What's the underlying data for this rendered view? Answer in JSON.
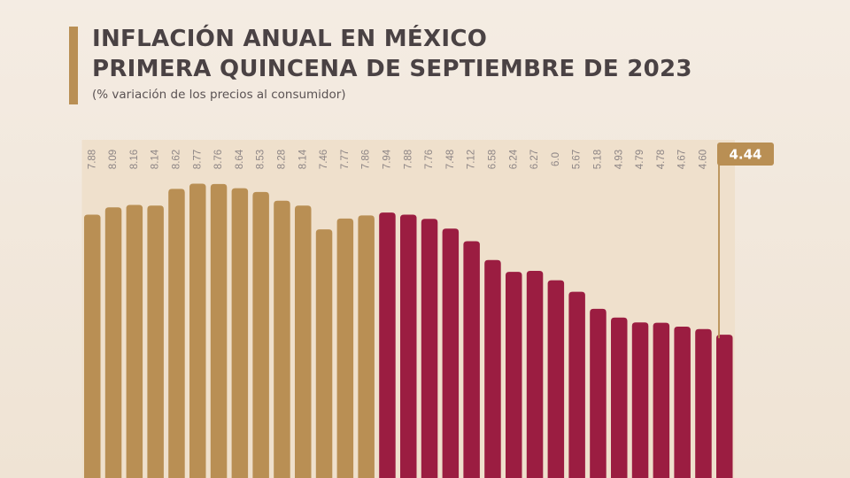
{
  "header": {
    "title_line1": "INFLACIÓN ANUAL EN MÉXICO",
    "title_line2": "PRIMERA QUINCENA DE SEPTIEMBRE DE 2023",
    "subtitle": "(% variación de los precios al consumidor)"
  },
  "colors": {
    "gold": "#b98f54",
    "crimson": "#9b1d41",
    "track": "#efe0cc",
    "label_text": "#8e8686",
    "callout_bg": "#b98f54",
    "callout_text": "#ffffff"
  },
  "chart_data": {
    "type": "bar",
    "values": [
      7.88,
      8.09,
      8.16,
      8.14,
      8.62,
      8.77,
      8.76,
      8.64,
      8.53,
      8.28,
      8.14,
      7.46,
      7.77,
      7.86,
      7.94,
      7.88,
      7.76,
      7.48,
      7.12,
      6.58,
      6.24,
      6.27,
      6.0,
      5.67,
      5.18,
      4.93,
      4.79,
      4.78,
      4.67,
      4.6,
      4.44
    ],
    "labels": [
      "7.88",
      "8.09",
      "8.16",
      "8.14",
      "8.62",
      "8.77",
      "8.76",
      "8.64",
      "8.53",
      "8.28",
      "8.14",
      "7.46",
      "7.77",
      "7.86",
      "7.94",
      "7.88",
      "7.76",
      "7.48",
      "7.12",
      "6.58",
      "6.24",
      "6.27",
      "6.0",
      "5.67",
      "5.18",
      "4.93",
      "4.79",
      "4.78",
      "4.67",
      "4.60",
      "4.44"
    ],
    "series_color_split_index": 14,
    "highlight_index": 30,
    "highlight_label": "4.44",
    "grid": false,
    "legend": "none"
  }
}
